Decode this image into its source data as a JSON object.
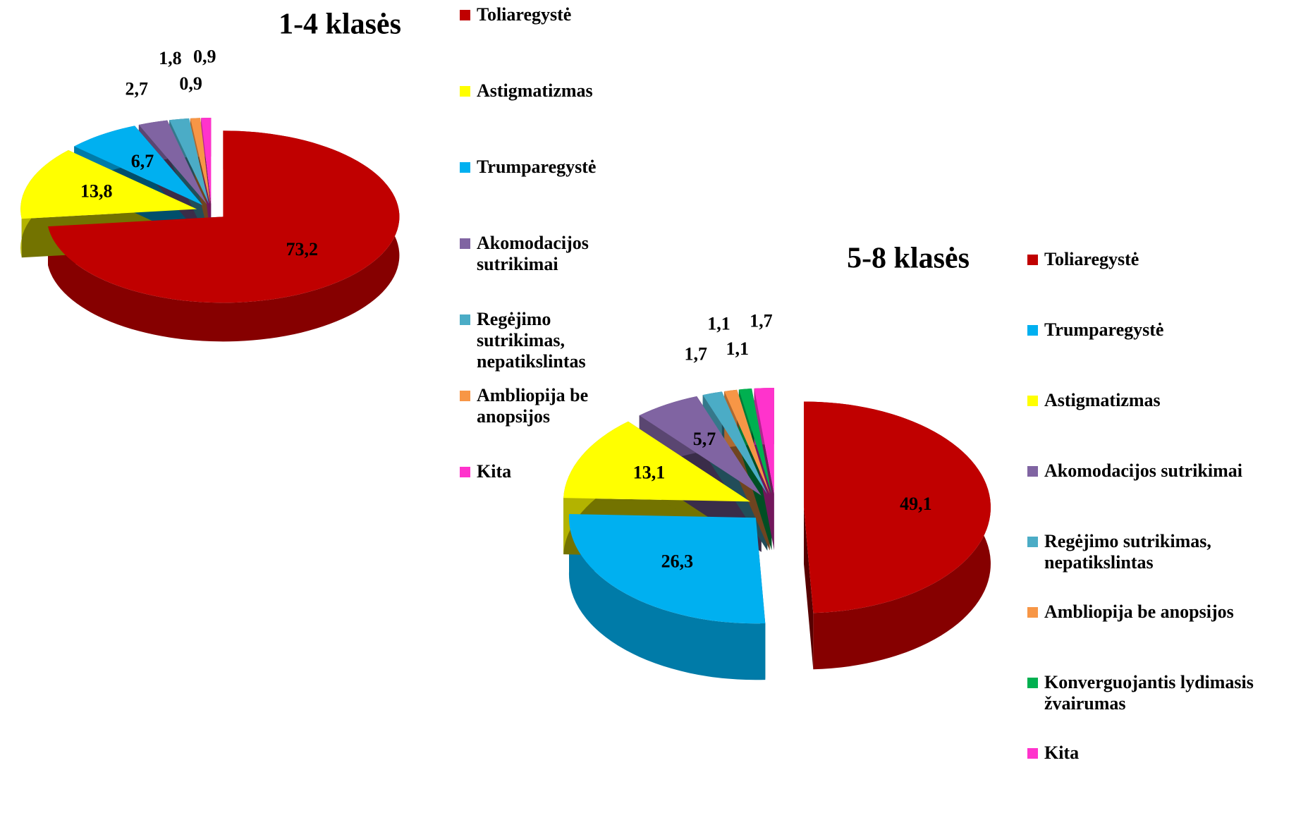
{
  "chart_data": [
    {
      "type": "pie",
      "title": "1-4 klasės",
      "categories": [
        "Toliaregystė",
        "Astigmatizmas",
        "Trumparegystė",
        "Akomodacijos sutrikimai",
        "Regėjimo sutrikimas, nepatikslintas",
        "Ambliopija be anopsijos",
        "Kita"
      ],
      "values": [
        73.2,
        13.8,
        6.7,
        2.7,
        1.8,
        0.9,
        0.9
      ],
      "value_labels": [
        "73,2",
        "13,8",
        "6,7",
        "2,7",
        "1,8",
        "0,9",
        "0,9"
      ],
      "colors": [
        "#c00000",
        "#ffff00",
        "#00b0f0",
        "#8064a2",
        "#4bacc6",
        "#f79646",
        "#ff33cc"
      ]
    },
    {
      "type": "pie",
      "title": "5-8 klasės",
      "categories": [
        "Toliaregystė",
        "Trumparegystė",
        "Astigmatizmas",
        "Akomodacijos sutrikimai",
        "Regėjimo sutrikimas, nepatikslintas",
        "Ambliopija be anopsijos",
        "Konverguojantis lydimasis žvairumas",
        "Kita"
      ],
      "values": [
        49.1,
        26.3,
        13.1,
        5.7,
        1.7,
        1.1,
        1.1,
        1.7
      ],
      "value_labels": [
        "49,1",
        "26,3",
        "13,1",
        "5,7",
        "1,7",
        "1,1",
        "1,1",
        "1,7"
      ],
      "colors": [
        "#c00000",
        "#00b0f0",
        "#ffff00",
        "#8064a2",
        "#4bacc6",
        "#f79646",
        "#00b050",
        "#ff33cc"
      ]
    }
  ]
}
